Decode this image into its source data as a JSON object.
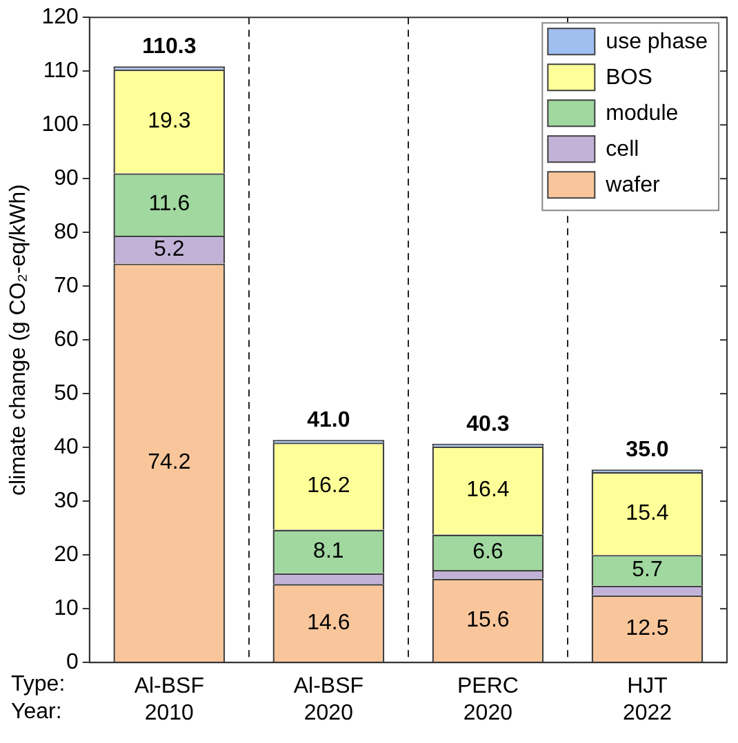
{
  "chart_data": {
    "type": "bar",
    "stacked": true,
    "ylabel": "climate change (g CO₂-eq/kWh)",
    "categories": [
      "Al-BSF\n2010",
      "Al-BSF\n2020",
      "PERC\n2020",
      "HJT\n2022"
    ],
    "series": [
      {
        "name": "wafer",
        "color": "#f9c69b",
        "values": [
          74.2,
          14.6,
          15.6,
          12.5
        ],
        "value_labels": [
          "74.2",
          "14.6",
          "15.6",
          "12.5"
        ]
      },
      {
        "name": "cell",
        "color": "#c3b2d8",
        "values": [
          5.2,
          2.0,
          1.6,
          1.8
        ],
        "value_labels": [
          "5.2",
          null,
          null,
          null
        ]
      },
      {
        "name": "module",
        "color": "#a0d8a0",
        "values": [
          11.6,
          8.1,
          6.6,
          5.7
        ],
        "value_labels": [
          "11.6",
          "8.1",
          "6.6",
          "5.7"
        ]
      },
      {
        "name": "BOS",
        "color": "#ffff99",
        "values": [
          19.3,
          16.2,
          16.4,
          15.4
        ],
        "value_labels": [
          "19.3",
          "16.2",
          "16.4",
          "15.4"
        ]
      },
      {
        "name": "use phase",
        "color": "#a0bff0",
        "values": [
          0.6,
          0.5,
          0.5,
          0.5
        ],
        "value_labels": [
          null,
          null,
          null,
          null
        ]
      }
    ],
    "annotations": [
      "Type:",
      "Year:",
      {
        "text": "110.3",
        "x": "Al-BSF\n2010",
        "y": 110.9
      },
      {
        "text": "41.0",
        "x": "Al-BSF\n2020",
        "y": 41.4
      },
      {
        "text": "40.3",
        "x": "PERC\n2020",
        "y": 40.7
      },
      {
        "text": "35.0",
        "x": "HJT\n2022",
        "y": 35.9
      }
    ],
    "ylim": [
      0,
      120
    ],
    "yticks": [
      0,
      10,
      20,
      30,
      40,
      50,
      60,
      70,
      80,
      90,
      100,
      110,
      120
    ],
    "grid": "x",
    "legend": "top right"
  }
}
